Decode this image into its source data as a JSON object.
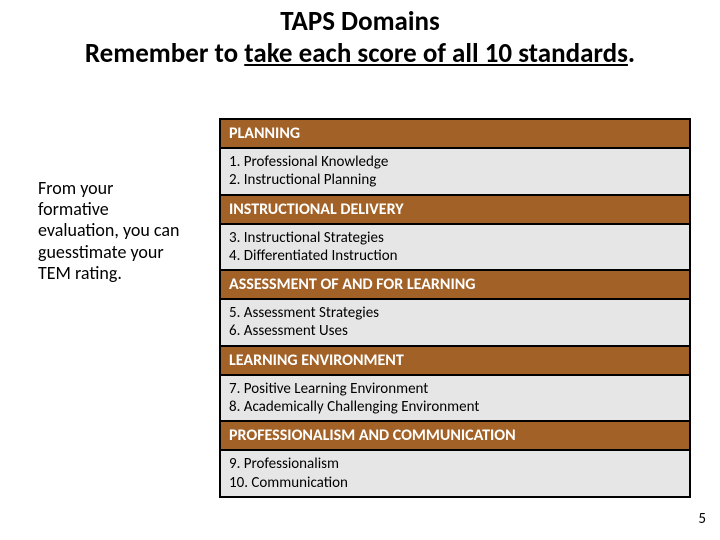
{
  "title": {
    "line1": "TAPS Domains",
    "line2_pre": "Remember to ",
    "line2_underlined": "take each score of all 10 standards",
    "line2_post": ".",
    "fontsize": 27,
    "fontweight": 700,
    "color": "#000000"
  },
  "sidenote": {
    "text": "From your formative evaluation, you can guesstimate your  TEM rating.",
    "fontsize": 18,
    "color": "#000000"
  },
  "table": {
    "border_color": "#000000",
    "header_bg": "#a26126",
    "header_text_color": "#ffffff",
    "item_bg": "#e6e6e6",
    "item_text_color": "#000000",
    "header_fontsize": 16,
    "item_fontsize": 15,
    "domains": [
      {
        "header": "PLANNING",
        "items": "1.  Professional Knowledge\n2.  Instructional Planning"
      },
      {
        "header": "INSTRUCTIONAL DELIVERY",
        "items": "3.  Instructional Strategies\n4.  Differentiated Instruction"
      },
      {
        "header": "ASSESSMENT OF AND FOR LEARNING",
        "items": "5.  Assessment Strategies\n6.  Assessment Uses"
      },
      {
        "header": "LEARNING ENVIRONMENT",
        "items": "7.  Positive Learning Environment\n8.  Academically Challenging Environment"
      },
      {
        "header": "PROFESSIONALISM AND COMMUNICATION",
        "items": "9. Professionalism\n10. Communication"
      }
    ]
  },
  "page_number": "5"
}
